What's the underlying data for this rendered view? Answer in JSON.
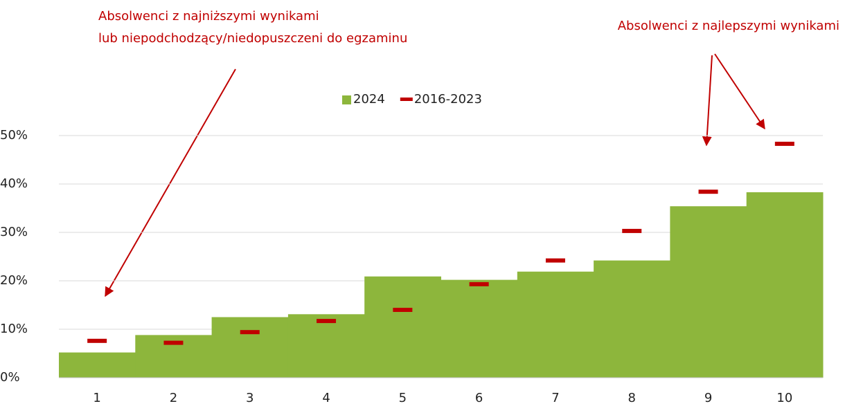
{
  "chart_data": {
    "type": "bar",
    "categories": [
      "1",
      "2",
      "3",
      "4",
      "5",
      "6",
      "7",
      "8",
      "9",
      "10"
    ],
    "series": [
      {
        "name": "2024",
        "color": "#8db63c",
        "values": [
          5.2,
          8.8,
          12.5,
          13.1,
          20.9,
          20.2,
          21.9,
          24.2,
          35.4,
          38.3
        ]
      },
      {
        "name": "2016-2023",
        "color": "#c00000",
        "marker": "dash",
        "values": [
          7.6,
          7.2,
          9.4,
          11.7,
          14.0,
          19.3,
          24.2,
          30.3,
          38.4,
          48.3
        ]
      }
    ],
    "ylim": [
      0,
      50
    ],
    "yticks": [
      {
        "value": 0,
        "label": "0%"
      },
      {
        "value": 10,
        "label": "10%"
      },
      {
        "value": 20,
        "label": "20%"
      },
      {
        "value": 30,
        "label": "30%"
      },
      {
        "value": 40,
        "label": "40%"
      },
      {
        "value": 50,
        "label": "50%"
      }
    ],
    "grid": true,
    "legend": "top",
    "annotations": [
      [
        "Absolwenci z najniższymi wynikami",
        "lub niepodchodzący/niedopuszczeni do egzaminu"
      ],
      [
        "Absolwenci z najlepszymi wynikami"
      ]
    ]
  }
}
